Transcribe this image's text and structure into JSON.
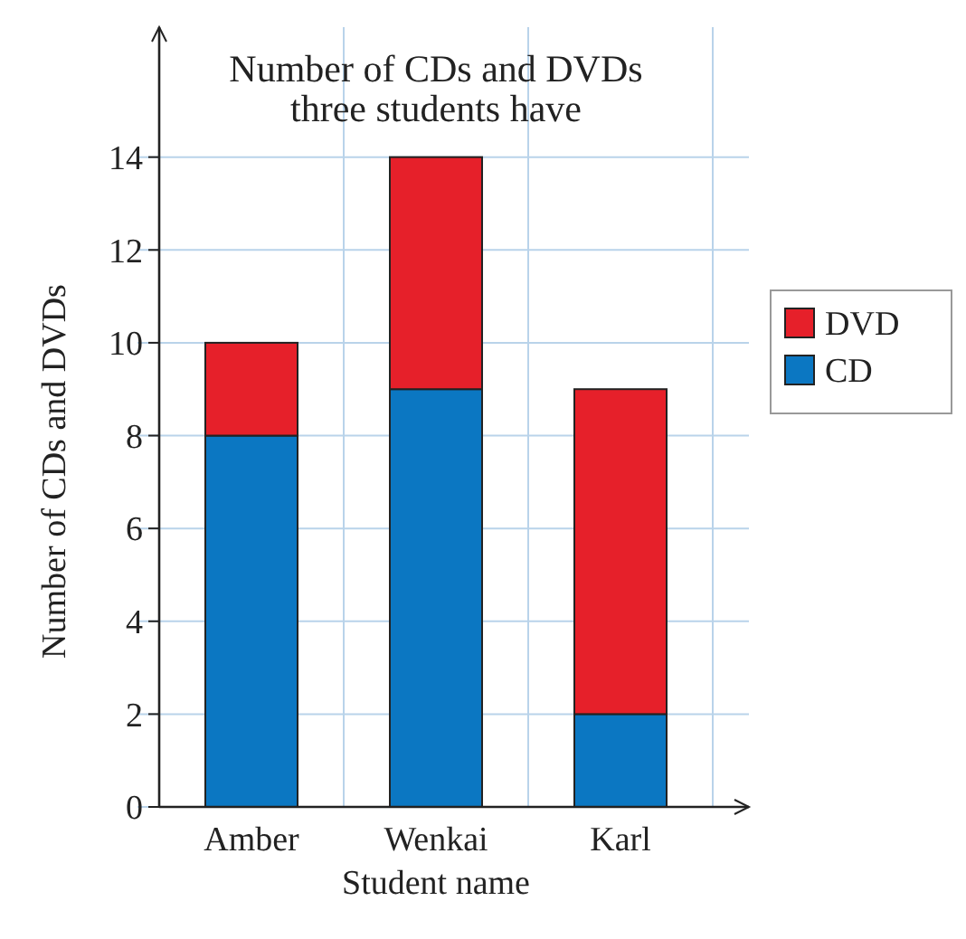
{
  "chart_data": {
    "type": "bar",
    "title": "Number of CDs and DVDs three students have",
    "xlabel": "Student name",
    "ylabel": "Number of CDs and DVDs",
    "categories": [
      "Amber",
      "Wenkai",
      "Karl"
    ],
    "stacked": true,
    "series": [
      {
        "name": "CD",
        "color": "#0b77c2",
        "values": [
          8,
          9,
          2
        ]
      },
      {
        "name": "DVD",
        "color": "#e6202a",
        "values": [
          2,
          5,
          7
        ]
      }
    ],
    "ylim": [
      0,
      16.8
    ],
    "yticks": [
      0,
      2,
      4,
      6,
      8,
      10,
      12,
      14
    ],
    "grid": true,
    "legend": "right"
  }
}
